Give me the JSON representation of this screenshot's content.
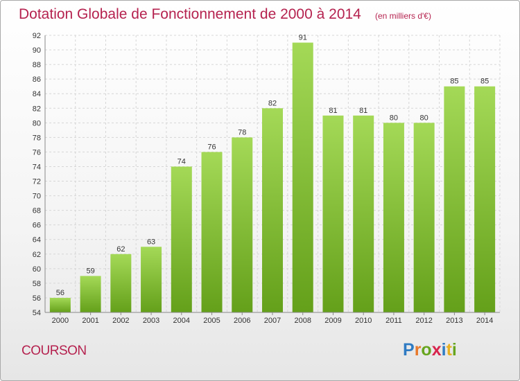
{
  "header": {
    "title": "Dotation Globale de Fonctionnement de 2000 à 2014",
    "unit": "(en milliers d'€)"
  },
  "footer": {
    "place": "COURSON",
    "logo": "Proxiti"
  },
  "colors": {
    "title": "#b5224f",
    "bar_light": "#9fd353",
    "bar_dark": "#6aa51f"
  },
  "chart_data": {
    "type": "bar",
    "title": "Dotation Globale de Fonctionnement de 2000 à 2014",
    "subtitle": "(en milliers d'€)",
    "xlabel": "",
    "ylabel": "",
    "categories": [
      "2000",
      "2001",
      "2002",
      "2003",
      "2004",
      "2005",
      "2006",
      "2007",
      "2008",
      "2009",
      "2010",
      "2011",
      "2012",
      "2013",
      "2014"
    ],
    "values": [
      56,
      59,
      62,
      63,
      74,
      76,
      78,
      82,
      91,
      81,
      81,
      80,
      80,
      85,
      85
    ],
    "ylim": [
      54,
      92
    ],
    "yticks": [
      54,
      56,
      58,
      60,
      62,
      64,
      66,
      68,
      70,
      72,
      74,
      76,
      78,
      80,
      82,
      84,
      86,
      88,
      90,
      92
    ],
    "grid": true,
    "legend": "none"
  }
}
